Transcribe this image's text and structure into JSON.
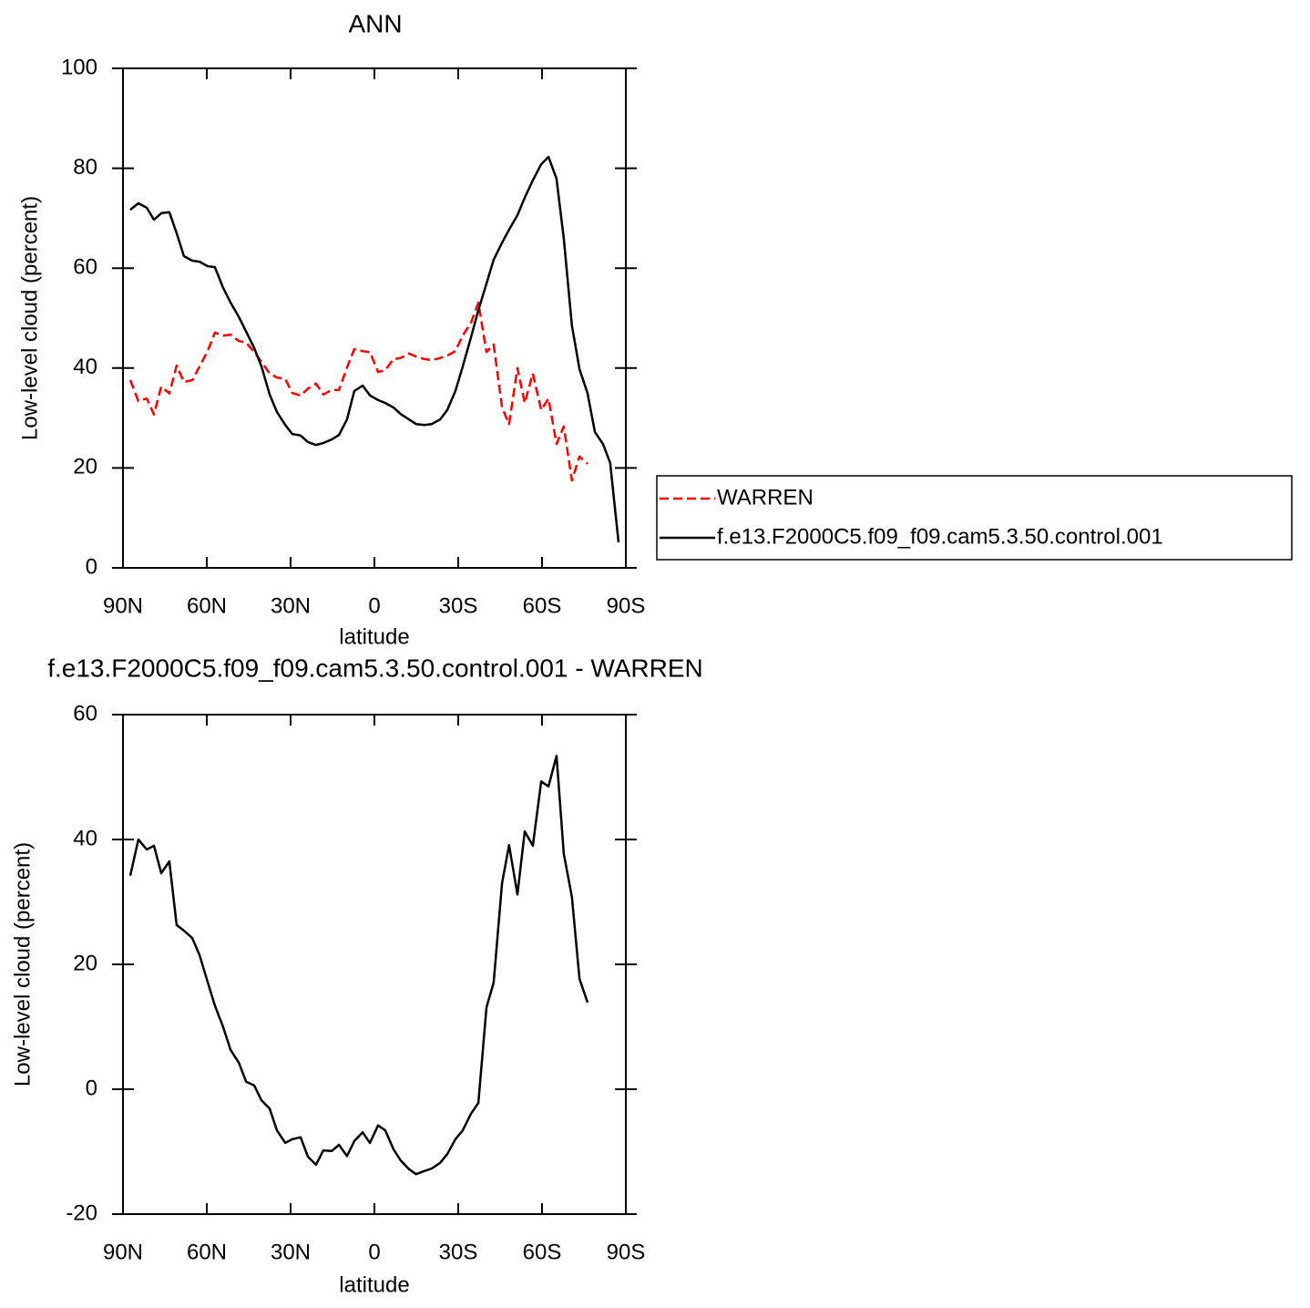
{
  "chart_data": [
    {
      "type": "line",
      "title": "ANN",
      "xlabel": "latitude",
      "ylabel": "Low-level cloud (percent)",
      "xlim": [
        90,
        -90
      ],
      "ylim": [
        0,
        100
      ],
      "xticks": [
        {
          "value": 90,
          "label": "90N"
        },
        {
          "value": 60,
          "label": "60N"
        },
        {
          "value": 30,
          "label": "30N"
        },
        0,
        {
          "value": -30,
          "label": "30S"
        },
        {
          "value": -60,
          "label": "60S"
        },
        {
          "value": -90,
          "label": "90S"
        }
      ],
      "yticks": [
        0,
        20,
        40,
        60,
        80,
        100
      ],
      "legend": "outside-right",
      "series": [
        {
          "name": "WARREN",
          "color": "#ff0000",
          "dashed": true,
          "x": [
            87.4,
            84.5,
            81.5,
            78.9,
            76.3,
            73.4,
            70.8,
            68.2,
            65.2,
            62.6,
            59.7,
            57.1,
            54.1,
            51.5,
            48.5,
            45.9,
            43.0,
            40.4,
            37.5,
            34.9,
            31.9,
            29.4,
            26.4,
            23.8,
            20.9,
            18.3,
            15.3,
            12.7,
            9.8,
            7.2,
            4.2,
            1.6,
            -1.3,
            -3.9,
            -6.8,
            -9.4,
            -12.4,
            -14.9,
            -17.9,
            -20.5,
            -23.5,
            -26.1,
            -29.0,
            -31.6,
            -34.6,
            -37.2,
            -40.1,
            -42.7,
            -45.7,
            -48.2,
            -51.2,
            -53.8,
            -56.7,
            -59.7,
            -62.3,
            -65.2,
            -67.8,
            -70.7,
            -73.4,
            -76.3
          ],
          "values": [
            37.6,
            33.4,
            33.9,
            30.7,
            36.3,
            34.9,
            40.5,
            37.2,
            37.6,
            40.3,
            43.4,
            47.1,
            46.5,
            46.7,
            45.4,
            45.1,
            43.2,
            41.2,
            38.9,
            38.1,
            37.8,
            35.0,
            34.5,
            35.9,
            36.9,
            34.7,
            35.6,
            35.6,
            40.1,
            43.8,
            43.4,
            43.2,
            39.2,
            39.6,
            41.8,
            42.0,
            42.9,
            42.3,
            41.8,
            41.6,
            42.0,
            42.5,
            43.4,
            46.5,
            49.1,
            53.1,
            43.2,
            44.7,
            32.1,
            28.8,
            40.0,
            33.0,
            38.9,
            31.6,
            33.9,
            24.8,
            28.3,
            17.5,
            22.3,
            20.8
          ]
        },
        {
          "name": "f.e13.F2000C5.f09_f09.cam5.3.50.control.001",
          "color": "#000000",
          "dashed": false,
          "x": [
            87.4,
            84.5,
            81.5,
            78.9,
            76.3,
            73.4,
            70.8,
            68.2,
            65.2,
            62.6,
            59.7,
            57.1,
            54.1,
            51.5,
            48.5,
            45.9,
            43.0,
            40.4,
            37.5,
            34.9,
            31.9,
            29.4,
            26.4,
            23.8,
            20.9,
            18.3,
            15.3,
            12.7,
            9.8,
            7.2,
            4.2,
            1.6,
            -1.3,
            -3.9,
            -6.8,
            -9.4,
            -12.4,
            -14.9,
            -17.9,
            -20.5,
            -23.5,
            -26.1,
            -29.0,
            -31.6,
            -34.6,
            -37.2,
            -40.1,
            -42.7,
            -45.7,
            -48.2,
            -51.2,
            -53.8,
            -56.7,
            -59.7,
            -62.3,
            -65.2,
            -67.8,
            -70.7,
            -73.4,
            -76.3,
            -78.9,
            -81.8,
            -84.4,
            -87.4
          ],
          "values": [
            71.7,
            73.0,
            72.1,
            69.7,
            71.0,
            71.2,
            67.0,
            62.4,
            61.5,
            61.3,
            60.4,
            60.2,
            56.0,
            53.1,
            50.2,
            47.3,
            44.0,
            40.3,
            34.7,
            31.2,
            28.6,
            26.8,
            26.5,
            25.2,
            24.6,
            25.0,
            25.7,
            26.6,
            29.7,
            35.4,
            36.5,
            34.5,
            33.6,
            33.0,
            32.1,
            30.8,
            29.7,
            28.8,
            28.6,
            28.8,
            29.7,
            31.6,
            35.4,
            40.3,
            46.2,
            51.6,
            56.9,
            61.7,
            65.1,
            67.7,
            70.6,
            74.1,
            77.6,
            80.8,
            82.3,
            77.9,
            65.9,
            48.5,
            39.8,
            34.9,
            27.2,
            24.8,
            21.0,
            5.1
          ]
        }
      ]
    },
    {
      "type": "line",
      "title": "f.e13.F2000C5.f09_f09.cam5.3.50.control.001 - WARREN",
      "xlabel": "latitude",
      "ylabel": "Low-level cloud (percent)",
      "xlim": [
        90,
        -90
      ],
      "ylim": [
        -20,
        60
      ],
      "xticks": [
        {
          "value": 90,
          "label": "90N"
        },
        {
          "value": 60,
          "label": "60N"
        },
        {
          "value": 30,
          "label": "30N"
        },
        0,
        {
          "value": -30,
          "label": "30S"
        },
        {
          "value": -60,
          "label": "60S"
        },
        {
          "value": -90,
          "label": "90S"
        }
      ],
      "yticks": [
        -20,
        0,
        20,
        40,
        60
      ],
      "series": [
        {
          "color": "#000000",
          "dashed": false,
          "x": [
            87.4,
            84.5,
            81.5,
            78.9,
            76.3,
            73.4,
            70.8,
            68.2,
            65.2,
            62.6,
            59.7,
            57.1,
            54.1,
            51.5,
            48.5,
            45.9,
            43.0,
            40.4,
            37.5,
            34.9,
            31.9,
            29.4,
            26.4,
            23.8,
            20.9,
            18.3,
            15.3,
            12.7,
            9.8,
            7.2,
            4.2,
            1.6,
            -1.3,
            -3.9,
            -6.8,
            -9.4,
            -12.4,
            -14.9,
            -17.9,
            -20.5,
            -23.5,
            -26.1,
            -29.0,
            -31.6,
            -34.6,
            -37.2,
            -40.1,
            -42.7,
            -45.7,
            -48.2,
            -51.2,
            -53.8,
            -56.7,
            -59.7,
            -62.3,
            -65.2,
            -67.8,
            -70.7,
            -73.4,
            -76.3
          ],
          "values": [
            34.2,
            40.0,
            38.4,
            39.0,
            34.6,
            36.5,
            26.3,
            25.4,
            24.2,
            21.5,
            17.2,
            13.4,
            9.9,
            6.3,
            4.2,
            1.2,
            0.6,
            -1.8,
            -3.1,
            -6.6,
            -8.6,
            -8.0,
            -7.7,
            -10.8,
            -12.1,
            -9.8,
            -9.9,
            -8.9,
            -10.7,
            -8.3,
            -6.9,
            -8.6,
            -5.8,
            -6.6,
            -9.6,
            -11.4,
            -12.8,
            -13.6,
            -13.1,
            -12.7,
            -11.8,
            -10.4,
            -8.0,
            -6.6,
            -3.9,
            -2.2,
            13.1,
            17.1,
            33.0,
            39.1,
            31.2,
            41.3,
            39.0,
            49.3,
            48.5,
            53.4,
            37.7,
            30.8,
            17.7,
            13.9
          ]
        }
      ]
    }
  ]
}
